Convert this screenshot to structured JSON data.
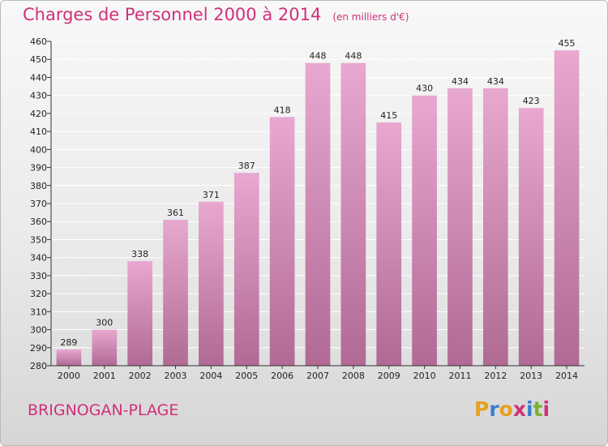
{
  "header": {
    "title": "Charges de Personnel 2000 à 2014",
    "subtitle": "(en milliers d'€)"
  },
  "footer": {
    "town": "BRIGNOGAN-PLAGE",
    "logo_text": "Proxiti"
  },
  "colors": {
    "title": "#d0307a",
    "bar_top": "#e8a8d0",
    "bar_bottom": "#b06a94",
    "grid": "#ffffff",
    "logo": [
      "#e8a020",
      "#3a7fd0",
      "#e8a020",
      "#d0307a",
      "#3a7fd0",
      "#7ab030",
      "#d0307a"
    ]
  },
  "chart_data": {
    "type": "bar",
    "title": "Charges de Personnel 2000 à 2014",
    "subtitle": "(en milliers d'€)",
    "categories": [
      "2000",
      "2001",
      "2002",
      "2003",
      "2004",
      "2005",
      "2006",
      "2007",
      "2008",
      "2009",
      "2010",
      "2011",
      "2012",
      "2013",
      "2014"
    ],
    "values": [
      289,
      300,
      338,
      361,
      371,
      387,
      418,
      448,
      448,
      415,
      430,
      434,
      434,
      423,
      455
    ],
    "ylim": [
      280,
      460
    ],
    "yticks": [
      280,
      290,
      300,
      310,
      320,
      330,
      340,
      350,
      360,
      370,
      380,
      390,
      400,
      410,
      420,
      430,
      440,
      450,
      460
    ],
    "grid": true,
    "legend": "none"
  }
}
